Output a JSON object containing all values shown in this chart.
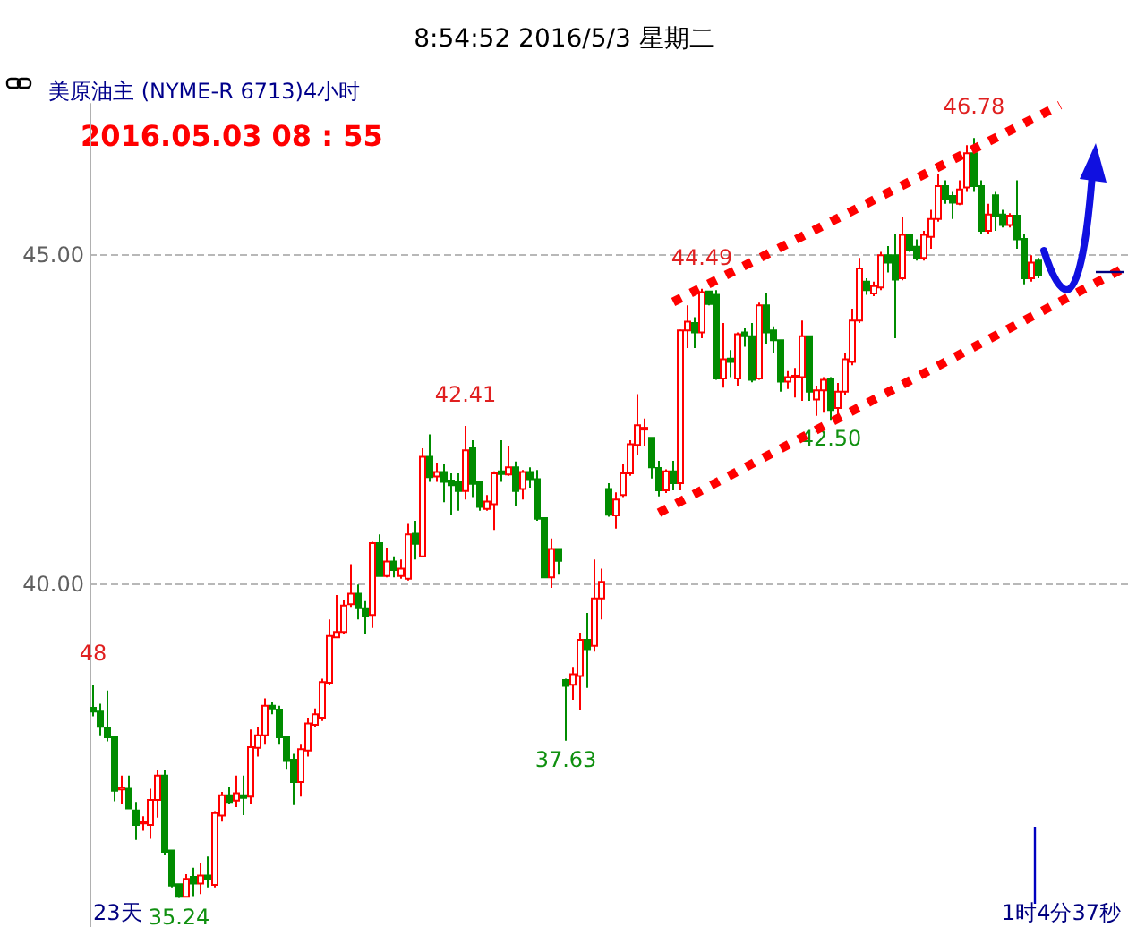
{
  "chart_data": {
    "type": "candlestick",
    "title": "8:54:52 2016/5/3 星期二",
    "subtitle": "美原油主 (NYME-R 6713)4小时",
    "categories": [
      null,
      null,
      null,
      null,
      null,
      null,
      null,
      null,
      null,
      null,
      null,
      null,
      null,
      null,
      null,
      null,
      null,
      null,
      null,
      null,
      null,
      null,
      null,
      null,
      null,
      null,
      null,
      null,
      null,
      null,
      null,
      null,
      null,
      null,
      null,
      null,
      null,
      null,
      null,
      null,
      null,
      null,
      null,
      null,
      null,
      null,
      null,
      null,
      null,
      null,
      null,
      null,
      null,
      null,
      null,
      null,
      null,
      null,
      null,
      null,
      null,
      null,
      null,
      null,
      null,
      null,
      null,
      null,
      null,
      null,
      null,
      null,
      null,
      null,
      null,
      null,
      null,
      null,
      null,
      null,
      null,
      null,
      null,
      null,
      null,
      null,
      null,
      null,
      null,
      null,
      null,
      null,
      null,
      null,
      null,
      null,
      null,
      null,
      null,
      null,
      null,
      null,
      null,
      null,
      null,
      null,
      null,
      null,
      null,
      null,
      null,
      null,
      null,
      null,
      null,
      null,
      null,
      null,
      null,
      null,
      null,
      null,
      null,
      null,
      null,
      null,
      null,
      null,
      null,
      null,
      null,
      null,
      null,
      null,
      null,
      null,
      null,
      null,
      null,
      null,
      null,
      null,
      null,
      null,
      null
    ],
    "ohlc": [
      [
        38.13,
        38.48,
        38.0,
        38.07
      ],
      [
        38.07,
        38.19,
        37.71,
        37.84
      ],
      [
        37.83,
        38.39,
        37.62,
        37.68
      ],
      [
        37.68,
        37.7,
        36.71,
        36.87
      ],
      [
        36.89,
        37.1,
        36.67,
        36.92
      ],
      [
        36.9,
        37.1,
        36.6,
        36.6
      ],
      [
        36.57,
        36.7,
        36.12,
        36.35
      ],
      [
        36.38,
        36.48,
        36.26,
        36.4
      ],
      [
        36.35,
        36.9,
        36.14,
        36.73
      ],
      [
        36.73,
        37.18,
        36.46,
        37.1
      ],
      [
        37.1,
        37.18,
        35.9,
        35.94
      ],
      [
        35.96,
        35.96,
        35.4,
        35.43
      ],
      [
        35.45,
        35.45,
        35.24,
        35.26
      ],
      [
        35.26,
        35.6,
        35.26,
        35.53
      ],
      [
        35.56,
        35.7,
        35.27,
        35.46
      ],
      [
        35.46,
        35.77,
        35.3,
        35.58
      ],
      [
        35.58,
        35.87,
        35.4,
        35.53
      ],
      [
        35.44,
        36.56,
        35.4,
        36.53
      ],
      [
        36.49,
        36.85,
        36.4,
        36.8
      ],
      [
        36.8,
        36.92,
        36.67,
        36.7
      ],
      [
        36.72,
        37.1,
        36.62,
        36.83
      ],
      [
        36.8,
        37.1,
        36.5,
        36.76
      ],
      [
        36.78,
        37.8,
        36.67,
        37.53
      ],
      [
        37.52,
        37.84,
        37.39,
        37.71
      ],
      [
        37.71,
        38.27,
        37.57,
        38.16
      ],
      [
        38.16,
        38.21,
        38.03,
        38.12
      ],
      [
        38.1,
        38.16,
        37.57,
        37.68
      ],
      [
        37.68,
        37.7,
        37.2,
        37.32
      ],
      [
        37.34,
        37.43,
        36.65,
        37.0
      ],
      [
        37.0,
        37.57,
        36.78,
        37.5
      ],
      [
        37.48,
        37.98,
        37.39,
        37.89
      ],
      [
        37.87,
        38.12,
        37.84,
        38.03
      ],
      [
        37.98,
        38.57,
        37.93,
        38.52
      ],
      [
        38.51,
        39.47,
        38.48,
        39.22
      ],
      [
        39.2,
        39.84,
        39.2,
        39.28
      ],
      [
        39.28,
        39.76,
        39.25,
        39.68
      ],
      [
        39.7,
        40.31,
        39.66,
        39.86
      ],
      [
        39.86,
        40.0,
        39.47,
        39.64
      ],
      [
        39.64,
        39.75,
        39.25,
        39.52
      ],
      [
        39.54,
        40.65,
        39.34,
        40.63
      ],
      [
        40.63,
        40.76,
        40.13,
        40.13
      ],
      [
        40.13,
        40.56,
        40.11,
        40.35
      ],
      [
        40.35,
        40.43,
        40.11,
        40.22
      ],
      [
        40.13,
        40.38,
        40.09,
        40.24
      ],
      [
        40.09,
        40.92,
        40.06,
        40.76
      ],
      [
        40.77,
        40.97,
        40.38,
        40.62
      ],
      [
        40.43,
        42.07,
        40.41,
        41.94
      ],
      [
        41.94,
        42.28,
        41.56,
        41.63
      ],
      [
        41.64,
        41.85,
        41.56,
        41.71
      ],
      [
        41.71,
        41.83,
        41.25,
        41.56
      ],
      [
        41.58,
        41.69,
        41.06,
        41.51
      ],
      [
        41.56,
        41.69,
        41.12,
        41.42
      ],
      [
        41.42,
        42.41,
        41.29,
        42.04
      ],
      [
        42.07,
        42.19,
        41.33,
        41.53
      ],
      [
        41.56,
        41.56,
        41.12,
        41.18
      ],
      [
        41.15,
        41.36,
        41.12,
        41.26
      ],
      [
        41.22,
        41.72,
        40.83,
        41.69
      ],
      [
        41.72,
        42.19,
        41.56,
        41.68
      ],
      [
        41.67,
        42.1,
        41.65,
        41.78
      ],
      [
        41.78,
        41.87,
        41.2,
        41.42
      ],
      [
        41.45,
        41.74,
        41.29,
        41.71
      ],
      [
        41.71,
        41.78,
        41.47,
        41.6
      ],
      [
        41.6,
        41.74,
        40.97,
        41.0
      ],
      [
        41.01,
        41.01,
        40.11,
        40.11
      ],
      [
        40.11,
        40.7,
        39.95,
        40.54
      ],
      [
        40.54,
        40.54,
        40.15,
        40.36
      ],
      [
        38.55,
        38.57,
        37.63,
        38.46
      ],
      [
        38.48,
        38.75,
        38.25,
        38.64
      ],
      [
        38.61,
        39.27,
        38.09,
        39.16
      ],
      [
        39.16,
        39.57,
        38.43,
        39.02
      ],
      [
        39.07,
        40.38,
        38.98,
        39.79
      ],
      [
        39.79,
        40.24,
        39.47,
        40.04
      ],
      [
        41.45,
        41.54,
        41.03,
        41.06
      ],
      [
        41.05,
        41.4,
        40.85,
        41.29
      ],
      [
        41.36,
        41.83,
        41.33,
        41.69
      ],
      [
        41.69,
        42.19,
        41.65,
        42.13
      ],
      [
        42.12,
        42.89,
        41.97,
        42.42
      ],
      [
        42.38,
        42.52,
        42.11,
        42.38
      ],
      [
        42.23,
        42.23,
        41.61,
        41.78
      ],
      [
        41.77,
        41.88,
        41.34,
        41.43
      ],
      [
        41.43,
        41.75,
        41.39,
        41.72
      ],
      [
        41.72,
        41.88,
        41.43,
        41.54
      ],
      [
        41.54,
        43.87,
        41.43,
        43.86
      ],
      [
        43.86,
        44.24,
        43.59,
        43.99
      ],
      [
        43.97,
        44.06,
        43.59,
        43.83
      ],
      [
        43.83,
        44.49,
        43.74,
        44.44
      ],
      [
        44.45,
        44.46,
        44.24,
        44.26
      ],
      [
        44.4,
        44.47,
        43.11,
        43.13
      ],
      [
        43.13,
        43.97,
        42.99,
        43.42
      ],
      [
        43.43,
        43.56,
        43.15,
        43.38
      ],
      [
        43.13,
        43.83,
        43.02,
        43.8
      ],
      [
        43.83,
        43.89,
        43.61,
        43.77
      ],
      [
        43.77,
        43.97,
        43.07,
        43.11
      ],
      [
        43.13,
        44.28,
        43.11,
        44.24
      ],
      [
        44.24,
        44.42,
        43.65,
        43.83
      ],
      [
        43.86,
        43.92,
        43.51,
        43.71
      ],
      [
        43.71,
        43.71,
        42.93,
        43.08
      ],
      [
        43.08,
        43.24,
        42.97,
        43.15
      ],
      [
        43.15,
        43.29,
        42.84,
        43.17
      ],
      [
        43.15,
        44.01,
        42.79,
        43.77
      ],
      [
        43.77,
        43.77,
        42.79,
        42.93
      ],
      [
        42.81,
        43.02,
        42.56,
        42.95
      ],
      [
        42.95,
        43.15,
        42.61,
        43.11
      ],
      [
        43.13,
        43.15,
        42.5,
        42.65
      ],
      [
        42.68,
        43.06,
        42.52,
        42.93
      ],
      [
        42.93,
        43.51,
        42.88,
        43.42
      ],
      [
        43.38,
        44.19,
        43.33,
        44.01
      ],
      [
        44.01,
        44.96,
        43.97,
        44.8
      ],
      [
        44.6,
        44.65,
        44.4,
        44.47
      ],
      [
        44.42,
        44.6,
        44.38,
        44.53
      ],
      [
        44.51,
        45.05,
        44.47,
        45.0
      ],
      [
        45.0,
        45.14,
        44.74,
        44.89
      ],
      [
        45.0,
        45.33,
        43.74,
        44.63
      ],
      [
        44.65,
        45.58,
        44.62,
        45.31
      ],
      [
        45.31,
        45.31,
        45.05,
        45.08
      ],
      [
        45.13,
        45.24,
        44.92,
        44.96
      ],
      [
        44.96,
        45.37,
        44.92,
        45.31
      ],
      [
        45.28,
        45.69,
        45.1,
        45.55
      ],
      [
        45.55,
        46.23,
        45.51,
        46.05
      ],
      [
        46.05,
        46.14,
        45.78,
        45.85
      ],
      [
        45.9,
        45.96,
        45.55,
        45.8
      ],
      [
        45.78,
        46.14,
        45.76,
        46.0
      ],
      [
        46.03,
        46.67,
        45.96,
        46.55
      ],
      [
        46.55,
        46.78,
        45.96,
        46.05
      ],
      [
        46.05,
        46.14,
        45.33,
        45.37
      ],
      [
        45.37,
        45.78,
        45.33,
        45.62
      ],
      [
        45.91,
        45.96,
        45.37,
        45.6
      ],
      [
        45.62,
        45.69,
        45.42,
        45.46
      ],
      [
        45.46,
        45.64,
        45.42,
        45.6
      ],
      [
        45.6,
        46.14,
        45.1,
        45.24
      ],
      [
        45.25,
        45.33,
        44.56,
        44.65
      ],
      [
        44.65,
        45.0,
        44.6,
        44.89
      ],
      [
        44.92,
        44.96,
        44.65,
        44.69
      ],
      null,
      null,
      null,
      null,
      null,
      null,
      null,
      null,
      null,
      null,
      null,
      null
    ],
    "series": [
      {
        "type": "line",
        "color": "#ff0000",
        "line_style": "dotted",
        "values": [
          null,
          null,
          null,
          null,
          null,
          null,
          null,
          null,
          null,
          null,
          null,
          null,
          null,
          null,
          null,
          null,
          null,
          null,
          null,
          null,
          null,
          null,
          null,
          null,
          null,
          null,
          null,
          null,
          null,
          null,
          null,
          null,
          null,
          null,
          null,
          null,
          null,
          null,
          null,
          null,
          null,
          null,
          null,
          null,
          null,
          null,
          null,
          null,
          null,
          null,
          null,
          null,
          null,
          null,
          null,
          null,
          null,
          null,
          null,
          null,
          null,
          null,
          null,
          null,
          null,
          null,
          null,
          null,
          null,
          null,
          null,
          null,
          null,
          null,
          null,
          null,
          null,
          null,
          null,
          null,
          null,
          44.29,
          null,
          null,
          null,
          null,
          null,
          null,
          null,
          null,
          null,
          null,
          null,
          null,
          null,
          null,
          null,
          null,
          null,
          null,
          null,
          null,
          null,
          null,
          null,
          null,
          null,
          null,
          null,
          null,
          null,
          null,
          null,
          null,
          null,
          null,
          null,
          null,
          null,
          null,
          null,
          null,
          null,
          null,
          null,
          null,
          null,
          null,
          null,
          null,
          null,
          null,
          null,
          null,
          null,
          47.28,
          null,
          null,
          null,
          null,
          null,
          null,
          null,
          null,
          null
        ]
      },
      {
        "type": "line",
        "color": "#ff0000",
        "line_style": "dotted",
        "values": [
          null,
          null,
          null,
          null,
          null,
          null,
          null,
          null,
          null,
          null,
          null,
          null,
          null,
          null,
          null,
          null,
          null,
          null,
          null,
          null,
          null,
          null,
          null,
          null,
          null,
          null,
          null,
          null,
          null,
          null,
          null,
          null,
          null,
          null,
          null,
          null,
          null,
          null,
          null,
          null,
          null,
          null,
          null,
          null,
          null,
          null,
          null,
          null,
          null,
          null,
          null,
          null,
          null,
          null,
          null,
          null,
          null,
          null,
          null,
          null,
          null,
          null,
          null,
          null,
          null,
          null,
          null,
          null,
          null,
          null,
          null,
          null,
          null,
          null,
          null,
          null,
          null,
          null,
          null,
          41.09,
          null,
          null,
          null,
          null,
          null,
          null,
          null,
          null,
          null,
          null,
          null,
          null,
          null,
          null,
          null,
          null,
          null,
          null,
          null,
          null,
          null,
          null,
          null,
          null,
          null,
          null,
          null,
          null,
          null,
          null,
          null,
          null,
          null,
          null,
          null,
          null,
          null,
          null,
          null,
          null,
          null,
          null,
          null,
          null,
          null,
          null,
          null,
          null,
          null,
          null,
          null,
          null,
          null,
          null,
          null,
          null,
          null,
          null,
          null,
          null,
          null,
          null,
          null,
          null,
          44.81
        ]
      }
    ],
    "ylim": [
      34.8,
      47.3
    ],
    "yticks": [
      {
        "value": 40,
        "label": "40.00"
      },
      {
        "value": 45,
        "label": "45.00"
      }
    ],
    "grid": "y",
    "tick_labels": "y",
    "annotations": [
      "2016.05.03 08 : 55",
      {
        "text": "48",
        "y": 38.48
      },
      {
        "text": "35.24",
        "y": 35.24
      },
      {
        "text": "42.41",
        "y": 42.41
      },
      {
        "text": "37.63",
        "y": 37.63
      },
      {
        "text": "44.49",
        "y": 44.49
      },
      {
        "text": "42.50",
        "y": 42.5
      },
      {
        "text": "46.78",
        "y": 46.78
      },
      "23天",
      "1时4分37秒"
    ]
  }
}
